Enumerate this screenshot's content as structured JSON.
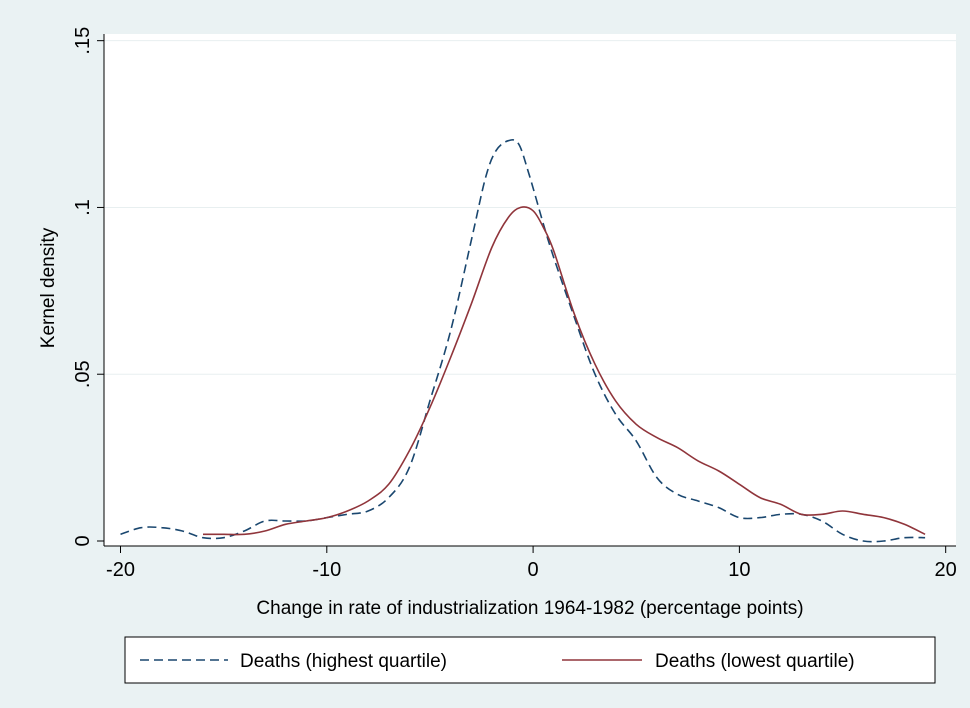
{
  "chart_data": {
    "type": "line",
    "xlabel": "Change in rate of industrialization 1964-1982 (percentage points)",
    "ylabel": "Kernel density",
    "xlim": [
      -20.8,
      20.5
    ],
    "ylim": [
      -0.0015,
      0.152
    ],
    "x_ticks": [
      -20,
      -10,
      0,
      10,
      20
    ],
    "x_tick_labels": [
      "-20",
      "-10",
      "0",
      "10",
      "20"
    ],
    "y_ticks": [
      0,
      0.05,
      0.1,
      0.15
    ],
    "y_tick_labels": [
      "0",
      ".05",
      ".1",
      ".15"
    ],
    "grid": "horizontal",
    "legend_position": "bottom",
    "series": [
      {
        "name": "Deaths (highest quartile)",
        "color": "#1a476f",
        "dash": "dashed",
        "points": [
          [
            -20,
            0.002
          ],
          [
            -19,
            0.004
          ],
          [
            -18,
            0.004
          ],
          [
            -17,
            0.003
          ],
          [
            -16,
            0.001
          ],
          [
            -15,
            0.001
          ],
          [
            -14,
            0.003
          ],
          [
            -13,
            0.006
          ],
          [
            -12,
            0.006
          ],
          [
            -11,
            0.006
          ],
          [
            -10,
            0.007
          ],
          [
            -9,
            0.008
          ],
          [
            -8,
            0.009
          ],
          [
            -7,
            0.013
          ],
          [
            -6,
            0.022
          ],
          [
            -5,
            0.042
          ],
          [
            -4,
            0.063
          ],
          [
            -3,
            0.09
          ],
          [
            -2.3,
            0.109
          ],
          [
            -1.8,
            0.117
          ],
          [
            -1.2,
            0.12
          ],
          [
            -0.7,
            0.119
          ],
          [
            -0.2,
            0.11
          ],
          [
            0.5,
            0.095
          ],
          [
            1,
            0.085
          ],
          [
            2,
            0.067
          ],
          [
            3,
            0.05
          ],
          [
            4,
            0.038
          ],
          [
            5,
            0.03
          ],
          [
            6,
            0.019
          ],
          [
            7,
            0.014
          ],
          [
            8,
            0.012
          ],
          [
            9,
            0.01
          ],
          [
            10,
            0.007
          ],
          [
            11,
            0.007
          ],
          [
            12,
            0.008
          ],
          [
            13,
            0.008
          ],
          [
            14,
            0.006
          ],
          [
            15,
            0.002
          ],
          [
            16,
            0
          ],
          [
            17,
            0
          ],
          [
            18,
            0.001
          ],
          [
            19,
            0.001
          ]
        ]
      },
      {
        "name": "Deaths (lowest quartile)",
        "color": "#90353b",
        "dash": "solid",
        "points": [
          [
            -16,
            0.002
          ],
          [
            -15,
            0.002
          ],
          [
            -14,
            0.002
          ],
          [
            -13,
            0.003
          ],
          [
            -12,
            0.005
          ],
          [
            -11,
            0.006
          ],
          [
            -10,
            0.007
          ],
          [
            -9,
            0.009
          ],
          [
            -8,
            0.012
          ],
          [
            -7,
            0.017
          ],
          [
            -6,
            0.027
          ],
          [
            -5,
            0.04
          ],
          [
            -4,
            0.055
          ],
          [
            -3,
            0.071
          ],
          [
            -2,
            0.088
          ],
          [
            -1.2,
            0.097
          ],
          [
            -0.6,
            0.1
          ],
          [
            0,
            0.099
          ],
          [
            0.5,
            0.094
          ],
          [
            1,
            0.087
          ],
          [
            2,
            0.068
          ],
          [
            3,
            0.053
          ],
          [
            4,
            0.042
          ],
          [
            5,
            0.035
          ],
          [
            6,
            0.031
          ],
          [
            7,
            0.028
          ],
          [
            8,
            0.024
          ],
          [
            9,
            0.021
          ],
          [
            10,
            0.017
          ],
          [
            11,
            0.013
          ],
          [
            12,
            0.011
          ],
          [
            13,
            0.008
          ],
          [
            14,
            0.008
          ],
          [
            15,
            0.009
          ],
          [
            16,
            0.008
          ],
          [
            17,
            0.007
          ],
          [
            18,
            0.005
          ],
          [
            19,
            0.002
          ]
        ]
      }
    ]
  }
}
